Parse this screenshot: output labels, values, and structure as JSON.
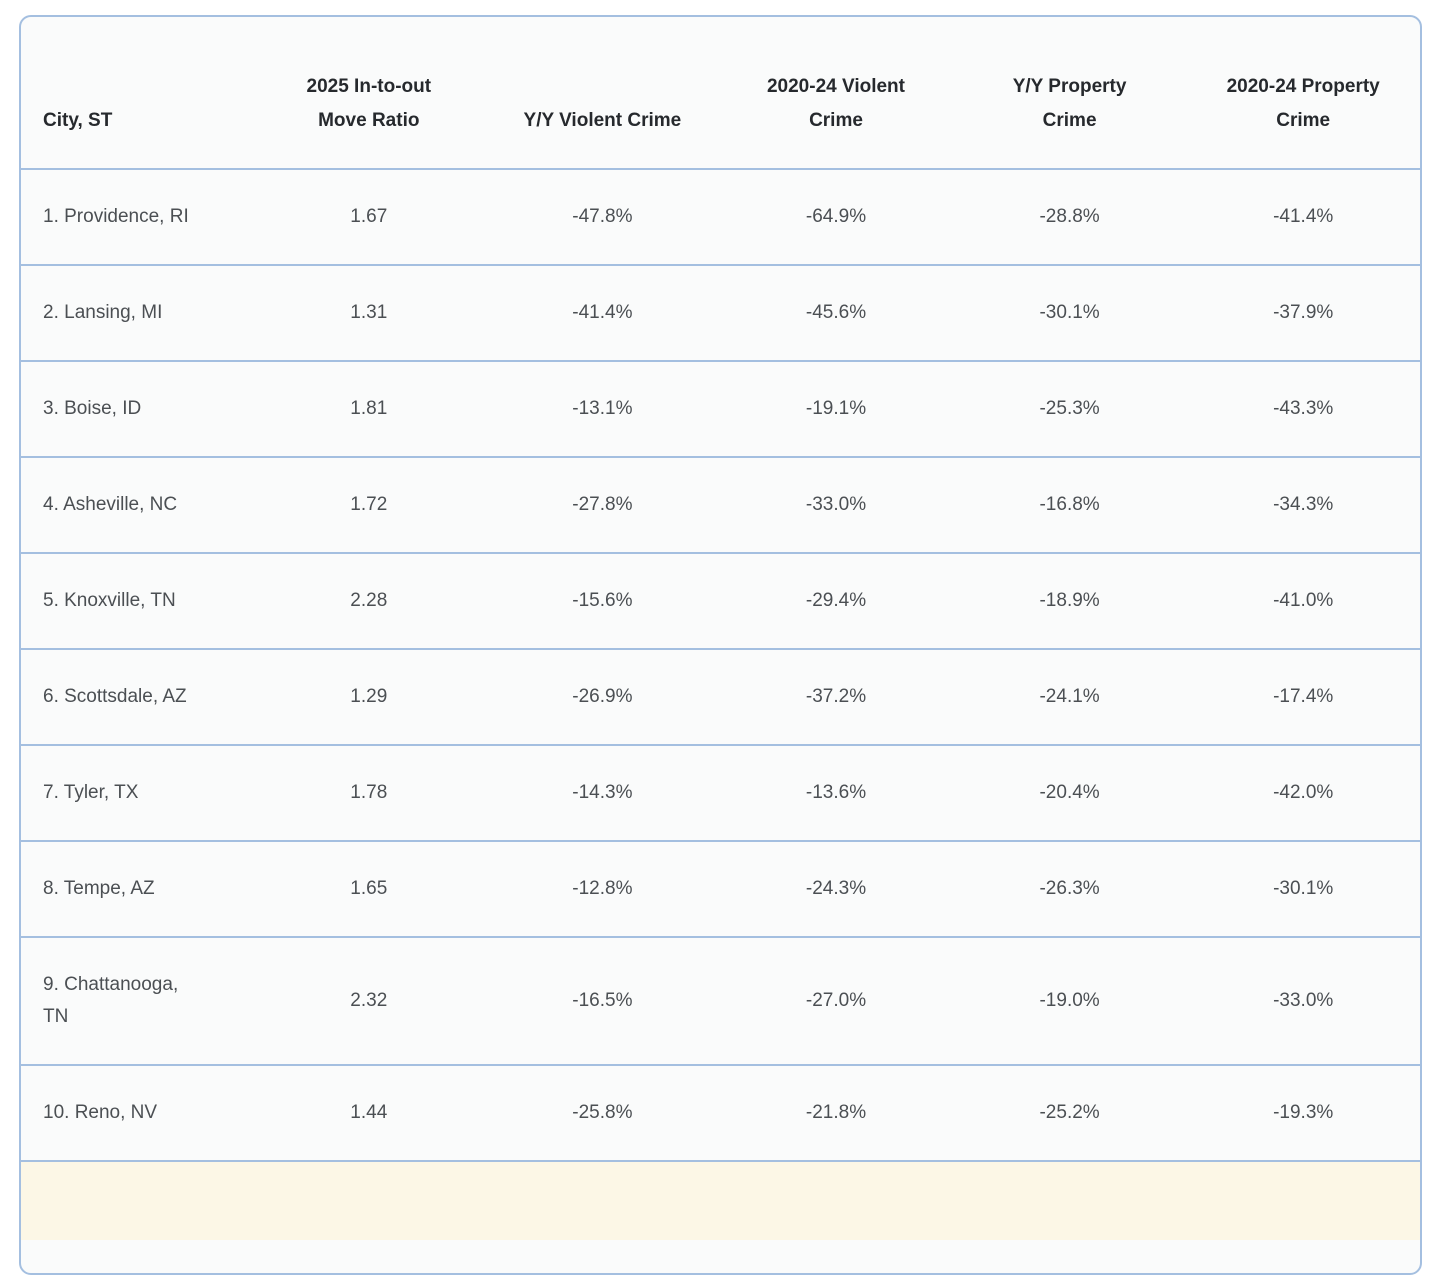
{
  "chart_data": {
    "type": "table",
    "title": "",
    "columns": [
      "City, ST",
      "2025 In-to-out Move Ratio",
      "Y/Y Violent Crime",
      "2020-24 Violent Crime",
      "Y/Y Property Crime",
      "2020-24 Property Crime"
    ],
    "header_lines": [
      "City, ST",
      "2025 In-to-out\nMove Ratio",
      "Y/Y Violent Crime",
      "2020-24 Violent\nCrime",
      "Y/Y Property\nCrime",
      "2020-24 Property\nCrime"
    ],
    "rows": [
      [
        "1. Providence, RI",
        "1.67",
        "-47.8%",
        "-64.9%",
        "-28.8%",
        "-41.4%"
      ],
      [
        "2. Lansing, MI",
        "1.31",
        "-41.4%",
        "-45.6%",
        "-30.1%",
        "-37.9%"
      ],
      [
        "3. Boise, ID",
        "1.81",
        "-13.1%",
        "-19.1%",
        "-25.3%",
        "-43.3%"
      ],
      [
        "4. Asheville, NC",
        "1.72",
        "-27.8%",
        "-33.0%",
        "-16.8%",
        "-34.3%"
      ],
      [
        "5. Knoxville, TN",
        "2.28",
        "-15.6%",
        "-29.4%",
        "-18.9%",
        "-41.0%"
      ],
      [
        "6. Scottsdale, AZ",
        "1.29",
        "-26.9%",
        "-37.2%",
        "-24.1%",
        "-17.4%"
      ],
      [
        "7. Tyler, TX",
        "1.78",
        "-14.3%",
        "-13.6%",
        "-20.4%",
        "-42.0%"
      ],
      [
        "8. Tempe, AZ",
        "1.65",
        "-12.8%",
        "-24.3%",
        "-26.3%",
        "-30.1%"
      ],
      [
        "9. Chattanooga, TN",
        "2.32",
        "-16.5%",
        "-27.0%",
        "-19.0%",
        "-33.0%"
      ],
      [
        "10. Reno, NV",
        "1.44",
        "-25.8%",
        "-21.8%",
        "-25.2%",
        "-19.3%"
      ]
    ]
  },
  "colors": {
    "table_border": "#a4bfe0",
    "row_background": "#fafbfb",
    "header_text": "#26292d",
    "cell_text": "#4b4f53",
    "partial_row_highlight": "#fcf7e6"
  }
}
